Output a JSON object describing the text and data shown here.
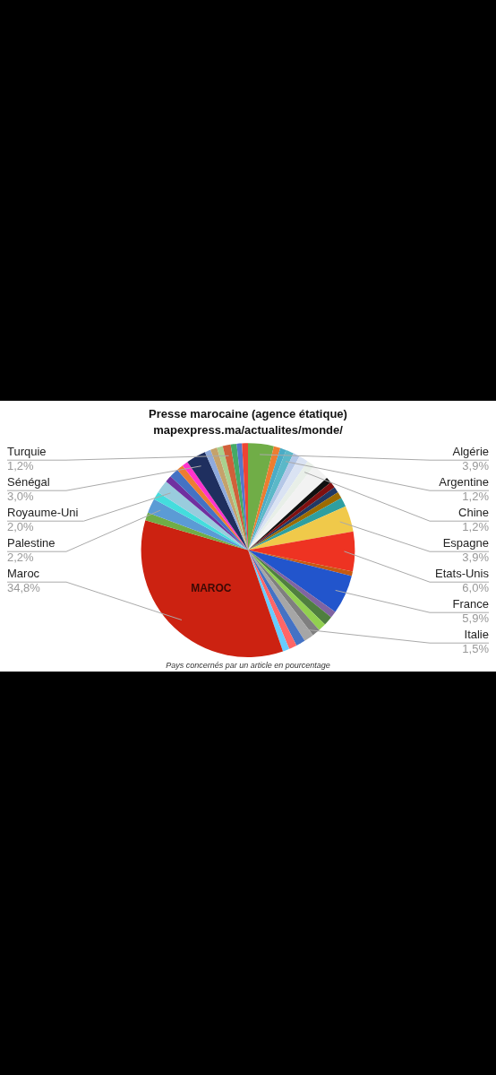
{
  "chart_data": {
    "type": "pie",
    "title": "Presse marocaine (agence étatique)",
    "subtitle": "mapexpress.ma/actualites/monde/",
    "categories": [
      "Algérie",
      null,
      null,
      "Argentine",
      null,
      null,
      "Chine",
      null,
      null,
      null,
      null,
      null,
      null,
      "Espagne",
      "Etats-Unis",
      null,
      "France",
      null,
      null,
      null,
      null,
      "Italie",
      null,
      null,
      null,
      "Maroc",
      null,
      "Palestine",
      null,
      "Royaume-Uni",
      null,
      null,
      null,
      null,
      "Sénégal",
      null,
      null,
      null,
      "Turquie",
      null,
      null,
      null
    ],
    "values": [
      3.9,
      1.0,
      0.9,
      1.2,
      1.0,
      1.4,
      1.2,
      2.6,
      0.9,
      0.9,
      0.9,
      1.0,
      1.4,
      3.9,
      6.0,
      0.7,
      5.9,
      1.0,
      1.4,
      1.2,
      1.2,
      1.5,
      1.4,
      1.2,
      1.0,
      34.8,
      1.2,
      2.2,
      1.2,
      2.0,
      1.0,
      1.4,
      1.0,
      0.9,
      3.0,
      0.9,
      1.0,
      0.9,
      1.2,
      0.9,
      0.8,
      0.9
    ],
    "value_labels": [
      "3,9%",
      null,
      null,
      "1,2%",
      null,
      null,
      "1,2%",
      null,
      null,
      null,
      null,
      null,
      null,
      "3,9%",
      "6,0%",
      null,
      "5,9%",
      null,
      null,
      null,
      null,
      "1,5%",
      null,
      null,
      null,
      "34,8%",
      null,
      "2,2%",
      null,
      "2,0%",
      null,
      null,
      null,
      null,
      "3,0%",
      null,
      null,
      null,
      "1,2%",
      null,
      null,
      null
    ],
    "colors": [
      "#70ad47",
      "#ed7d31",
      "#4bacc6",
      "#5bb8c8",
      "#b4c7e7",
      "#dae3f3",
      "#e8efe8",
      "#f2f2f2",
      "#111111",
      "#7f1010",
      "#203864",
      "#9c6b00",
      "#2e9fa0",
      "#f0c94a",
      "#ee3322",
      "#c55a11",
      "#2255cc",
      "#8064a2",
      "#4f7f3f",
      "#92d050",
      "#7f7f7f",
      "#a6a6a6",
      "#4472c4",
      "#ff6666",
      "#66ccff",
      "#cc2211",
      "#70ad47",
      "#5b9bd5",
      "#44dddd",
      "#99ccdd",
      "#7030a0",
      "#4472c4",
      "#ed7d31",
      "#ff33cc",
      "#1f2f5f",
      "#8faadc",
      "#c5a26b",
      "#a9d18e",
      "#d0603a",
      "#44aa66",
      "#5577cc",
      "#ee4433"
    ],
    "annotations": [
      {
        "text": "MAROC",
        "x": "Maroc"
      },
      "Pays concernés par un article en pourcentage"
    ]
  }
}
